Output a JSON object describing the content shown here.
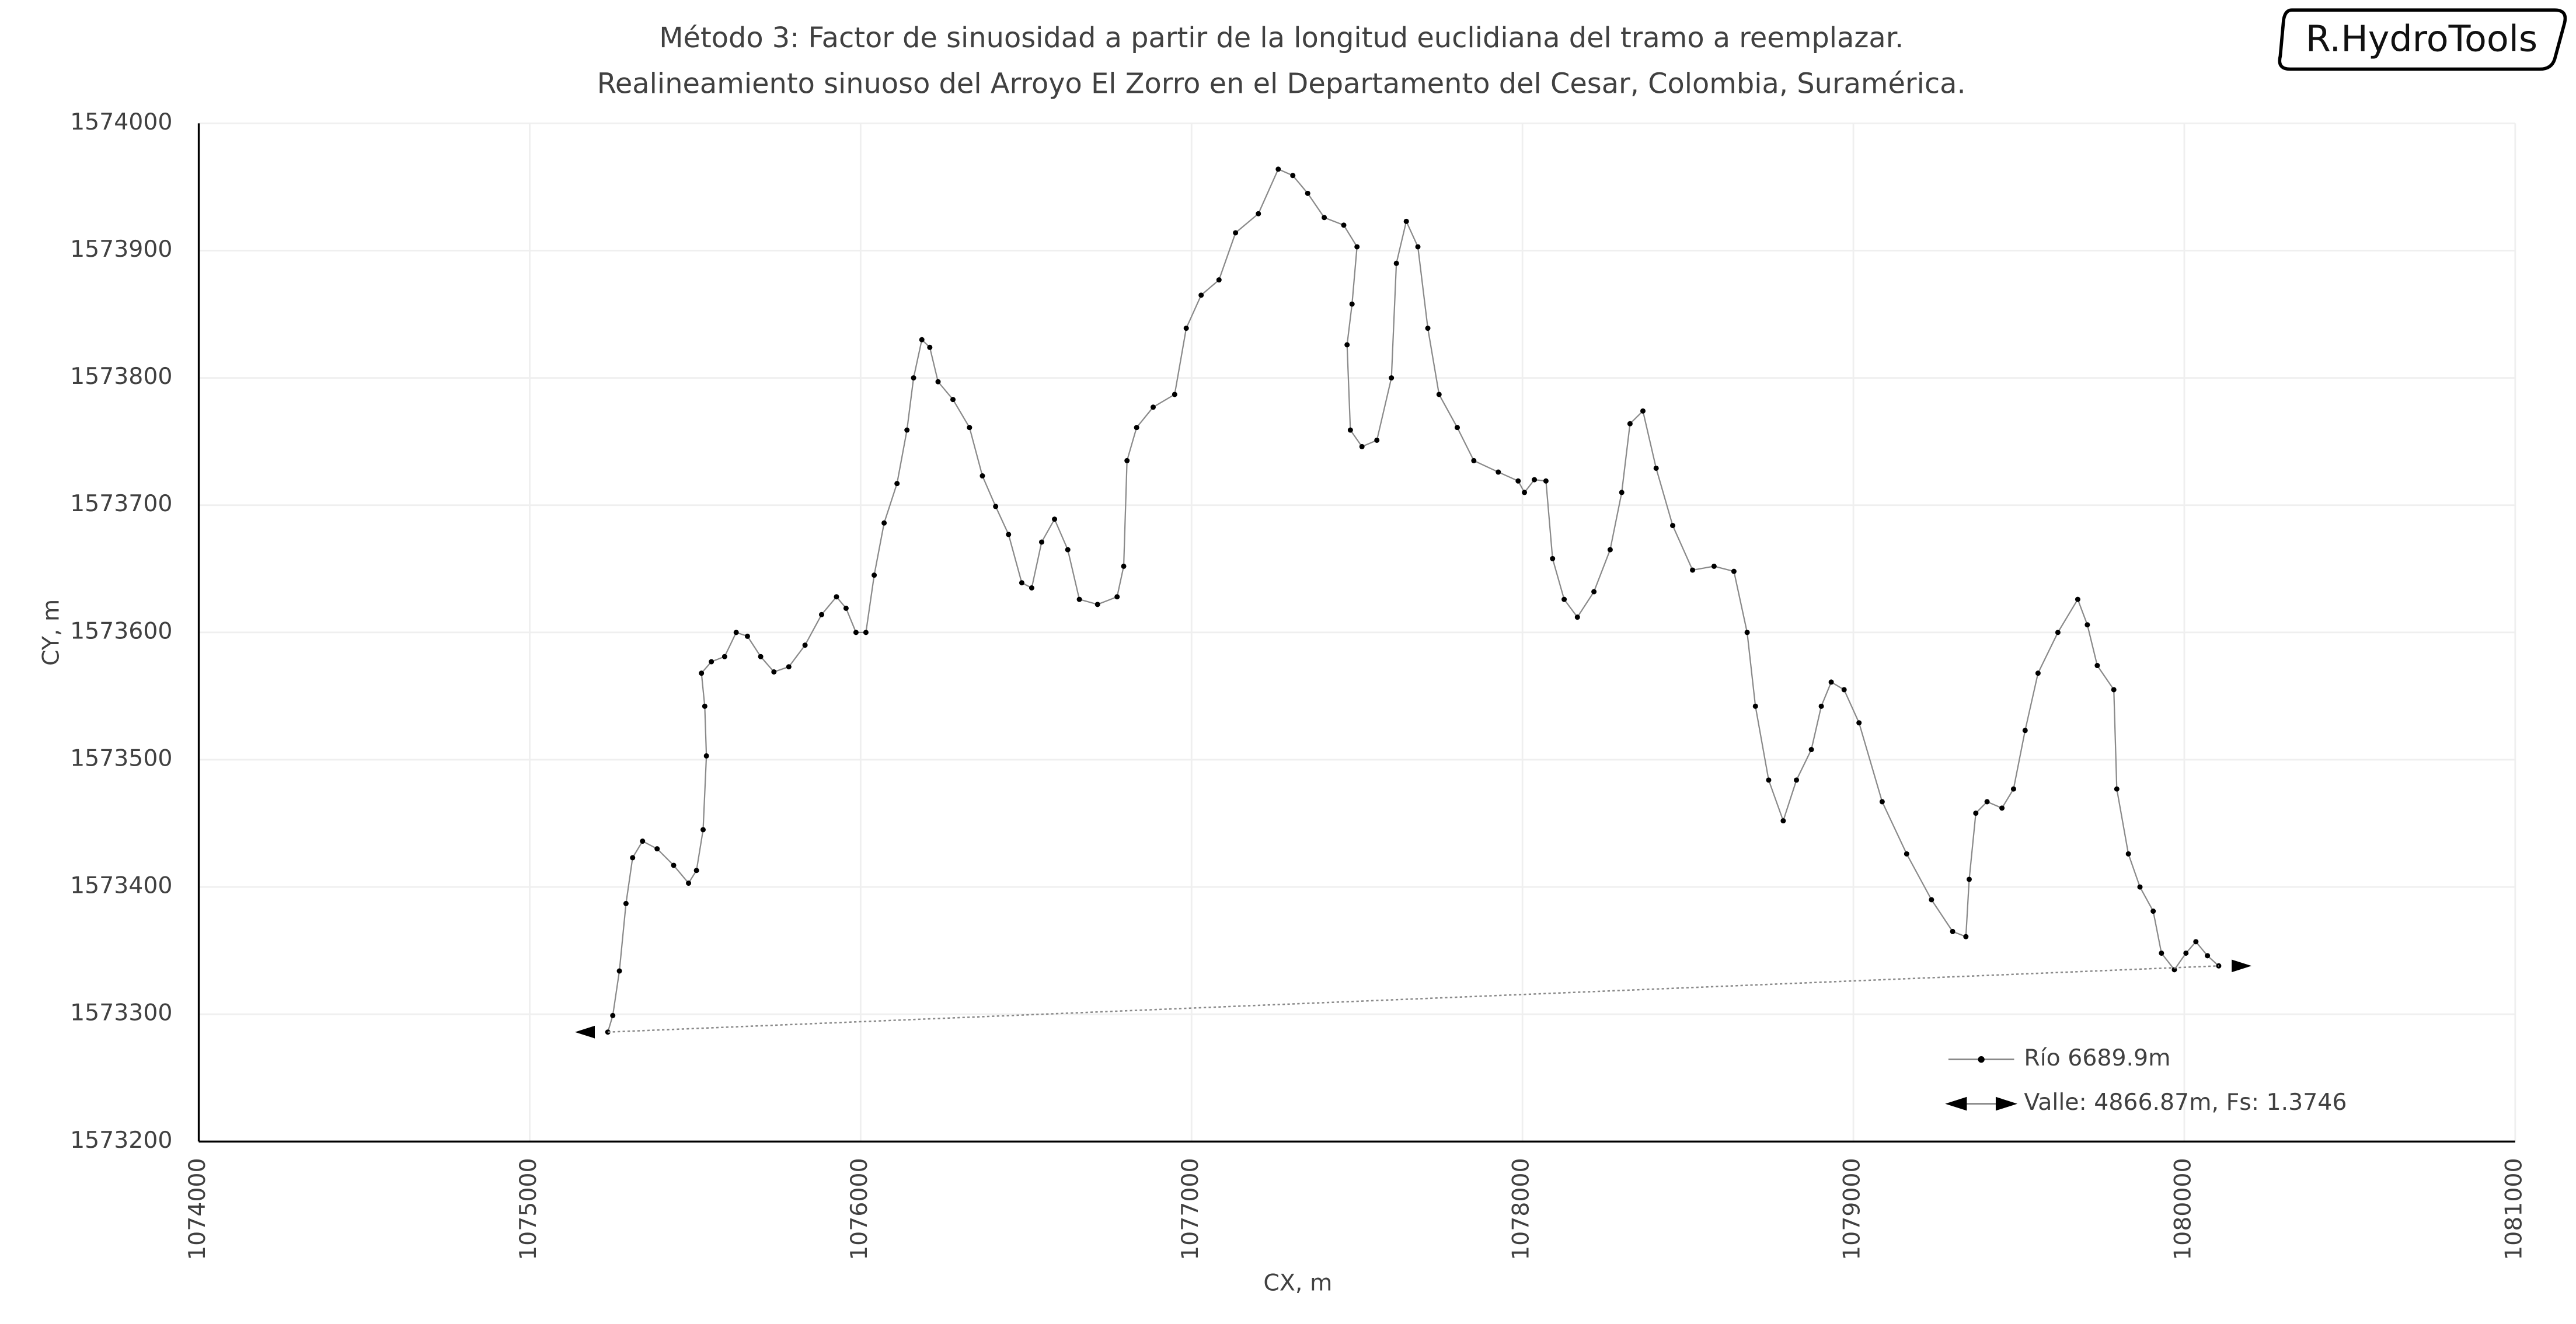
{
  "badge": "R.HydroTools",
  "chart_data": {
    "type": "line",
    "title": "Método 3: Factor de sinuosidad a partir de la longitud euclidiana del tramo a reemplazar.",
    "subtitle": "Realineamiento sinuoso del Arroyo El Zorro en el Departamento del Cesar, Colombia, Suramérica.",
    "x_label": "CX, m",
    "y_label": "CY, m",
    "xlim": [
      1074000,
      1081000
    ],
    "xticks": [
      1074000,
      1075000,
      1076000,
      1077000,
      1078000,
      1079000,
      1080000,
      1081000
    ],
    "ylim": [
      1573200,
      1574000
    ],
    "yticks": [
      1573200,
      1573300,
      1573400,
      1573500,
      1573600,
      1573700,
      1573800,
      1573900,
      1574000
    ],
    "grid": true,
    "legend": "lower right",
    "series": [
      {
        "name": "Río 6689.9m",
        "color": "#000000",
        "line_color": "#8a8a8a",
        "marker": "dot",
        "x": [
          1075236,
          1075251,
          1075271,
          1075291,
          1075311,
          1075341,
          1075385,
          1075435,
          1075480,
          1075504,
          1075524,
          1075534,
          1075529,
          1075519,
          1075549,
          1075589,
          1075624,
          1075658,
          1075698,
          1075738,
          1075783,
          1075832,
          1075882,
          1075927,
          1075956,
          1075986,
          1076016,
          1076041,
          1076071,
          1076110,
          1076140,
          1076160,
          1076185,
          1076209,
          1076234,
          1076279,
          1076329,
          1076368,
          1076408,
          1076447,
          1076487,
          1076517,
          1076547,
          1076586,
          1076626,
          1076661,
          1076716,
          1076775,
          1076795,
          1076805,
          1076834,
          1076884,
          1076949,
          1076984,
          1077029,
          1077083,
          1077133,
          1077202,
          1077262,
          1077306,
          1077351,
          1077401,
          1077460,
          1077500,
          1077485,
          1077470,
          1077480,
          1077515,
          1077560,
          1077604,
          1077619,
          1077649,
          1077684,
          1077714,
          1077748,
          1077803,
          1077853,
          1077927,
          1077987,
          1078006,
          1078036,
          1078071,
          1078091,
          1078126,
          1078166,
          1078216,
          1078265,
          1078300,
          1078325,
          1078364,
          1078404,
          1078454,
          1078514,
          1078579,
          1078639,
          1078679,
          1078704,
          1078744,
          1078788,
          1078828,
          1078873,
          1078903,
          1078933,
          1078972,
          1079017,
          1079087,
          1079161,
          1079236,
          1079300,
          1079340,
          1079350,
          1079370,
          1079404,
          1079449,
          1079484,
          1079519,
          1079558,
          1079618,
          1079678,
          1079707,
          1079737,
          1079787,
          1079796,
          1079831,
          1079866,
          1079906,
          1079931,
          1079970,
          1080005,
          1080035,
          1080070,
          1080104
        ],
        "values": [
          1573286,
          1573299,
          1573334,
          1573387,
          1573423,
          1573436,
          1573430,
          1573417,
          1573403,
          1573413,
          1573445,
          1573503,
          1573542,
          1573568,
          1573577,
          1573581,
          1573600,
          1573597,
          1573581,
          1573569,
          1573573,
          1573590,
          1573614,
          1573628,
          1573619,
          1573600,
          1573600,
          1573645,
          1573686,
          1573717,
          1573759,
          1573800,
          1573830,
          1573824,
          1573797,
          1573783,
          1573761,
          1573723,
          1573699,
          1573677,
          1573639,
          1573635,
          1573671,
          1573689,
          1573665,
          1573626,
          1573622,
          1573628,
          1573652,
          1573735,
          1573761,
          1573777,
          1573787,
          1573839,
          1573865,
          1573877,
          1573914,
          1573929,
          1573964,
          1573959,
          1573945,
          1573926,
          1573920,
          1573903,
          1573858,
          1573826,
          1573759,
          1573746,
          1573751,
          1573800,
          1573890,
          1573923,
          1573903,
          1573839,
          1573787,
          1573761,
          1573735,
          1573726,
          1573719,
          1573710,
          1573720,
          1573719,
          1573658,
          1573626,
          1573612,
          1573632,
          1573665,
          1573710,
          1573764,
          1573774,
          1573729,
          1573684,
          1573649,
          1573652,
          1573648,
          1573600,
          1573542,
          1573484,
          1573452,
          1573484,
          1573508,
          1573542,
          1573561,
          1573555,
          1573529,
          1573467,
          1573426,
          1573390,
          1573365,
          1573361,
          1573406,
          1573458,
          1573467,
          1573462,
          1573477,
          1573523,
          1573568,
          1573600,
          1573626,
          1573606,
          1573574,
          1573555,
          1573477,
          1573426,
          1573400,
          1573381,
          1573348,
          1573335,
          1573348,
          1573357,
          1573346,
          1573338
        ]
      },
      {
        "name": "Valle: 4866.87m, Fs: 1.3746",
        "color": "#000000",
        "line_color": "#8a8a8a",
        "marker": "arrow",
        "x": [
          1075236,
          1080104
        ],
        "values": [
          1573286,
          1573338
        ]
      }
    ]
  }
}
